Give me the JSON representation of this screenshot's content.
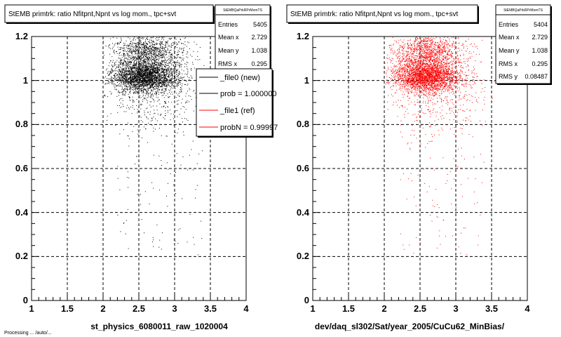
{
  "footer_text": "Processing ... /auto/... ",
  "chart_data": [
    {
      "type": "scatter",
      "title": "StEMB primtrk: ratio Nfitpnt,Npnt vs log mom., tpc+svt",
      "xlabel": "st_physics_6080011_raw_1020004",
      "ylabel": "",
      "xlim": [
        1,
        4
      ],
      "ylim": [
        0,
        1.2
      ],
      "x_ticks": [
        "1",
        "1.5",
        "2",
        "2.5",
        "3",
        "3.5",
        "4"
      ],
      "y_ticks": [
        "0",
        "0.2",
        "0.4",
        "0.6",
        "0.8",
        "1",
        "1.2"
      ],
      "grid": true,
      "marker_color": "#000000",
      "stats": {
        "name": "StEMBQaPrkRPrMomTS",
        "entries_label": "Entries",
        "entries": "5405",
        "meanx_label": "Mean x",
        "meanx": "2.729",
        "meany_label": "Mean y",
        "meany": "1.038",
        "rmsx_label": "RMS x",
        "rmsx": "0.295"
      },
      "legend": {
        "placement": "top-right",
        "entries": [
          {
            "label": "_file0 (new)",
            "color": "#000000"
          },
          {
            "label": "prob = 1.000000",
            "color": "#000000"
          },
          {
            "label": "_file1 (ref)",
            "color": "#ff0000"
          },
          {
            "label": "probN = 0.99997",
            "color": "#ff0000"
          }
        ]
      },
      "distribution": {
        "entries": 5405,
        "mean_x": 2.729,
        "mean_y": 1.038,
        "rms_x": 0.295,
        "rms_y": 0.085
      }
    },
    {
      "type": "scatter",
      "title": "StEMB primtrk: ratio Nfitpnt,Npnt vs log mom., tpc+svt",
      "xlabel": "dev/daq_sl302/Sat/year_2005/CuCu62_MinBias/",
      "ylabel": "",
      "xlim": [
        1,
        4
      ],
      "ylim": [
        0,
        1.2
      ],
      "x_ticks": [
        "1",
        "1.5",
        "2",
        "2.5",
        "3",
        "3.5",
        "4"
      ],
      "y_ticks": [
        "0",
        "0.2",
        "0.4",
        "0.6",
        "0.8",
        "1",
        "1.2"
      ],
      "grid": true,
      "marker_color": "#ff0000",
      "stats": {
        "name": "StEMBQaPrkRPrMomTS",
        "entries_label": "Entries",
        "entries": "5404",
        "meanx_label": "Mean x",
        "meanx": "2.729",
        "meany_label": "Mean y",
        "meany": "1.038",
        "rmsx_label": "RMS x",
        "rmsx": "0.295",
        "rmsy_label": "RMS y",
        "rmsy": "0.08487"
      },
      "distribution": {
        "entries": 5404,
        "mean_x": 2.729,
        "mean_y": 1.038,
        "rms_x": 0.295,
        "rms_y": 0.08487
      }
    }
  ]
}
